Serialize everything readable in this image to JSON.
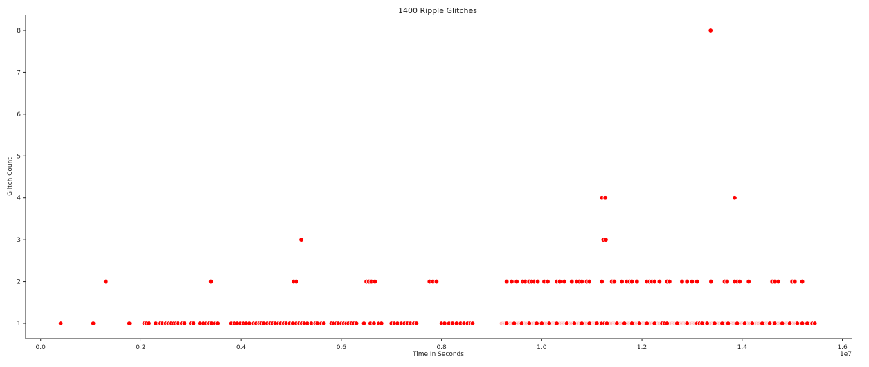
{
  "chart_data": {
    "type": "scatter",
    "title": "1400 Ripple Glitches",
    "xlabel": "Time In Seconds",
    "ylabel": "Glitch Count",
    "x_offset_label": "1e7",
    "x_scale": 10000000,
    "xlim": [
      -0.03,
      1.62
    ],
    "ylim": [
      0.65,
      8.35
    ],
    "xticks": [
      0.0,
      0.2,
      0.4,
      0.6,
      0.8,
      1.0,
      1.2,
      1.4,
      1.6
    ],
    "xtick_labels": [
      "0.0",
      "0.2",
      "0.4",
      "0.6",
      "0.8",
      "1.0",
      "1.2",
      "1.4",
      "1.6"
    ],
    "yticks": [
      1,
      2,
      3,
      4,
      5,
      6,
      7,
      8
    ],
    "ytick_labels": [
      "1",
      "2",
      "3",
      "4",
      "5",
      "6",
      "7",
      "8"
    ],
    "grid": false,
    "marker_color": "#ff0000",
    "marker_edge_color": "#ffffff",
    "dense_band": [
      0.92,
      1.545
    ],
    "points": [
      [
        0.04,
        1
      ],
      [
        0.105,
        1
      ],
      [
        0.177,
        1
      ],
      [
        0.207,
        1
      ],
      [
        0.211,
        1
      ],
      [
        0.216,
        1
      ],
      [
        0.23,
        1
      ],
      [
        0.238,
        1
      ],
      [
        0.243,
        1
      ],
      [
        0.25,
        1
      ],
      [
        0.255,
        1
      ],
      [
        0.26,
        1
      ],
      [
        0.266,
        1
      ],
      [
        0.27,
        1
      ],
      [
        0.274,
        1
      ],
      [
        0.282,
        1
      ],
      [
        0.287,
        1
      ],
      [
        0.3,
        1
      ],
      [
        0.305,
        1
      ],
      [
        0.318,
        1
      ],
      [
        0.325,
        1
      ],
      [
        0.33,
        1
      ],
      [
        0.336,
        1
      ],
      [
        0.341,
        1
      ],
      [
        0.348,
        1
      ],
      [
        0.353,
        1
      ],
      [
        0.38,
        1
      ],
      [
        0.387,
        1
      ],
      [
        0.392,
        1
      ],
      [
        0.398,
        1
      ],
      [
        0.405,
        1
      ],
      [
        0.41,
        1
      ],
      [
        0.416,
        1
      ],
      [
        0.425,
        1
      ],
      [
        0.43,
        1
      ],
      [
        0.436,
        1
      ],
      [
        0.44,
        1
      ],
      [
        0.445,
        1
      ],
      [
        0.452,
        1
      ],
      [
        0.458,
        1
      ],
      [
        0.463,
        1
      ],
      [
        0.468,
        1
      ],
      [
        0.474,
        1
      ],
      [
        0.479,
        1
      ],
      [
        0.485,
        1
      ],
      [
        0.49,
        1
      ],
      [
        0.497,
        1
      ],
      [
        0.503,
        1
      ],
      [
        0.51,
        1
      ],
      [
        0.516,
        1
      ],
      [
        0.521,
        1
      ],
      [
        0.526,
        1
      ],
      [
        0.532,
        1
      ],
      [
        0.54,
        1
      ],
      [
        0.548,
        1
      ],
      [
        0.552,
        1
      ],
      [
        0.56,
        1
      ],
      [
        0.565,
        1
      ],
      [
        0.58,
        1
      ],
      [
        0.585,
        1
      ],
      [
        0.59,
        1
      ],
      [
        0.594,
        1
      ],
      [
        0.6,
        1
      ],
      [
        0.605,
        1
      ],
      [
        0.61,
        1
      ],
      [
        0.614,
        1
      ],
      [
        0.62,
        1
      ],
      [
        0.625,
        1
      ],
      [
        0.63,
        1
      ],
      [
        0.645,
        1
      ],
      [
        0.658,
        1
      ],
      [
        0.665,
        1
      ],
      [
        0.675,
        1
      ],
      [
        0.68,
        1
      ],
      [
        0.7,
        1
      ],
      [
        0.706,
        1
      ],
      [
        0.712,
        1
      ],
      [
        0.72,
        1
      ],
      [
        0.726,
        1
      ],
      [
        0.732,
        1
      ],
      [
        0.738,
        1
      ],
      [
        0.745,
        1
      ],
      [
        0.75,
        1
      ],
      [
        0.8,
        1
      ],
      [
        0.806,
        1
      ],
      [
        0.815,
        1
      ],
      [
        0.822,
        1
      ],
      [
        0.83,
        1
      ],
      [
        0.838,
        1
      ],
      [
        0.845,
        1
      ],
      [
        0.852,
        1
      ],
      [
        0.858,
        1
      ],
      [
        0.862,
        1
      ],
      [
        0.93,
        1
      ],
      [
        0.945,
        1
      ],
      [
        0.96,
        1
      ],
      [
        0.975,
        1
      ],
      [
        0.99,
        1
      ],
      [
        1.0,
        1
      ],
      [
        1.015,
        1
      ],
      [
        1.03,
        1
      ],
      [
        1.05,
        1
      ],
      [
        1.065,
        1
      ],
      [
        1.08,
        1
      ],
      [
        1.095,
        1
      ],
      [
        1.11,
        1
      ],
      [
        1.12,
        1
      ],
      [
        1.125,
        1
      ],
      [
        1.13,
        1
      ],
      [
        1.15,
        1
      ],
      [
        1.165,
        1
      ],
      [
        1.18,
        1
      ],
      [
        1.195,
        1
      ],
      [
        1.21,
        1
      ],
      [
        1.225,
        1
      ],
      [
        1.24,
        1
      ],
      [
        1.245,
        1
      ],
      [
        1.25,
        1
      ],
      [
        1.27,
        1
      ],
      [
        1.29,
        1
      ],
      [
        1.31,
        1
      ],
      [
        1.315,
        1
      ],
      [
        1.32,
        1
      ],
      [
        1.33,
        1
      ],
      [
        1.345,
        1
      ],
      [
        1.36,
        1
      ],
      [
        1.372,
        1
      ],
      [
        1.39,
        1
      ],
      [
        1.405,
        1
      ],
      [
        1.42,
        1
      ],
      [
        1.44,
        1
      ],
      [
        1.455,
        1
      ],
      [
        1.465,
        1
      ],
      [
        1.48,
        1
      ],
      [
        1.495,
        1
      ],
      [
        1.51,
        1
      ],
      [
        1.52,
        1
      ],
      [
        1.53,
        1
      ],
      [
        1.54,
        1
      ],
      [
        1.545,
        1
      ],
      [
        0.13,
        2
      ],
      [
        0.34,
        2
      ],
      [
        0.505,
        2
      ],
      [
        0.51,
        2
      ],
      [
        0.65,
        2
      ],
      [
        0.655,
        2
      ],
      [
        0.66,
        2
      ],
      [
        0.667,
        2
      ],
      [
        0.776,
        2
      ],
      [
        0.783,
        2
      ],
      [
        0.79,
        2
      ],
      [
        0.93,
        2
      ],
      [
        0.94,
        2
      ],
      [
        0.95,
        2
      ],
      [
        0.962,
        2
      ],
      [
        0.967,
        2
      ],
      [
        0.975,
        2
      ],
      [
        0.98,
        2
      ],
      [
        0.985,
        2
      ],
      [
        0.992,
        2
      ],
      [
        1.005,
        2
      ],
      [
        1.012,
        2
      ],
      [
        1.03,
        2
      ],
      [
        1.036,
        2
      ],
      [
        1.045,
        2
      ],
      [
        1.06,
        2
      ],
      [
        1.07,
        2
      ],
      [
        1.075,
        2
      ],
      [
        1.08,
        2
      ],
      [
        1.09,
        2
      ],
      [
        1.095,
        2
      ],
      [
        1.12,
        2
      ],
      [
        1.14,
        2
      ],
      [
        1.145,
        2
      ],
      [
        1.16,
        2
      ],
      [
        1.17,
        2
      ],
      [
        1.175,
        2
      ],
      [
        1.18,
        2
      ],
      [
        1.19,
        2
      ],
      [
        1.21,
        2
      ],
      [
        1.215,
        2
      ],
      [
        1.22,
        2
      ],
      [
        1.225,
        2
      ],
      [
        1.235,
        2
      ],
      [
        1.25,
        2
      ],
      [
        1.255,
        2
      ],
      [
        1.28,
        2
      ],
      [
        1.29,
        2
      ],
      [
        1.3,
        2
      ],
      [
        1.31,
        2
      ],
      [
        1.338,
        2
      ],
      [
        1.365,
        2
      ],
      [
        1.37,
        2
      ],
      [
        1.385,
        2
      ],
      [
        1.39,
        2
      ],
      [
        1.395,
        2
      ],
      [
        1.413,
        2
      ],
      [
        1.46,
        2
      ],
      [
        1.465,
        2
      ],
      [
        1.472,
        2
      ],
      [
        1.5,
        2
      ],
      [
        1.505,
        2
      ],
      [
        1.52,
        2
      ],
      [
        0.52,
        3
      ],
      [
        1.123,
        3
      ],
      [
        1.128,
        3
      ],
      [
        1.12,
        4
      ],
      [
        1.127,
        4
      ],
      [
        1.385,
        4
      ],
      [
        1.337,
        8
      ]
    ]
  }
}
